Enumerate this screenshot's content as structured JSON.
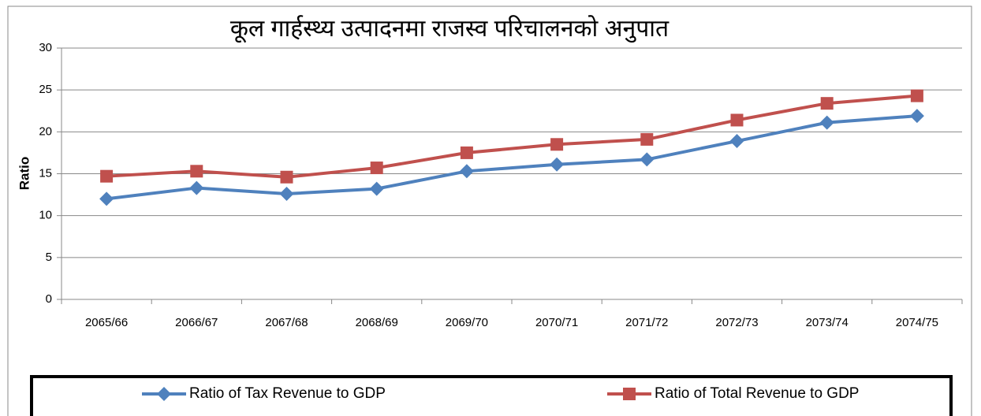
{
  "chart_data": {
    "type": "line",
    "title": "कूल गार्हस्थ्य उत्पादनमा राजस्व परिचालनको अनुपात",
    "y_label": "Ratio",
    "categories": [
      "2065/66",
      "2066/67",
      "2067/68",
      "2068/69",
      "2069/70",
      "2070/71",
      "2071/72",
      "2072/73",
      "2073/74",
      "2074/75"
    ],
    "series": [
      {
        "name": "Ratio of Tax Revenue to GDP",
        "color": "#4f81bd",
        "marker": "diamond",
        "values": [
          12.0,
          13.3,
          12.6,
          13.2,
          15.3,
          16.1,
          16.7,
          18.9,
          21.1,
          21.9
        ]
      },
      {
        "name": "Ratio of Total Revenue to GDP",
        "color": "#c0504d",
        "marker": "square",
        "values": [
          14.7,
          15.3,
          14.6,
          15.7,
          17.5,
          18.5,
          19.1,
          21.4,
          23.4,
          24.3
        ]
      }
    ],
    "ylim": [
      0,
      30
    ],
    "yticks": [
      0,
      5,
      10,
      15,
      20,
      25,
      30
    ],
    "grid": true,
    "legend": "bottom"
  }
}
